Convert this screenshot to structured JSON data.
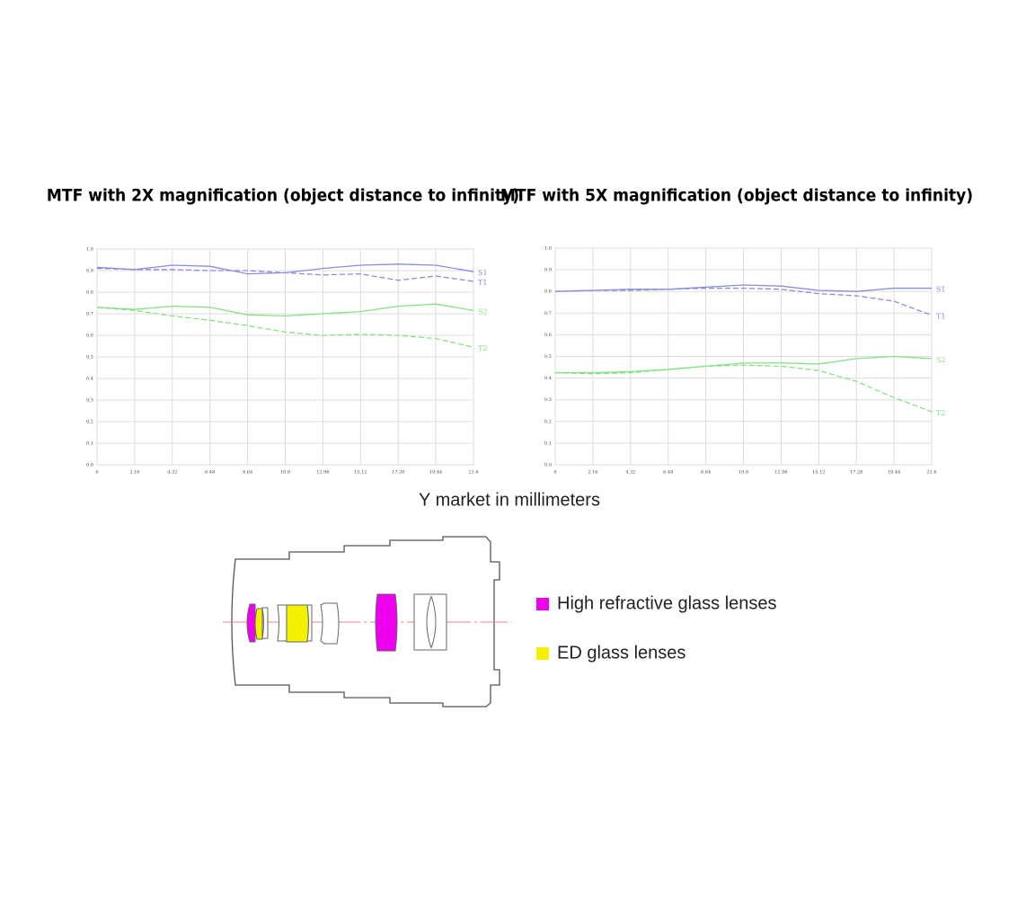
{
  "chart_data": [
    {
      "type": "line",
      "title": "MTF with 2X magnification (object distance to infinity)",
      "x": [
        0,
        2.16,
        4.32,
        6.48,
        8.64,
        10.8,
        12.96,
        15.12,
        17.28,
        19.44,
        21.6
      ],
      "xlim": [
        0,
        21.6
      ],
      "xticks": [
        0,
        2.16,
        4.32,
        6.48,
        8.64,
        10.8,
        12.96,
        15.12,
        17.28,
        19.44,
        21.6
      ],
      "ylim": [
        0,
        1
      ],
      "yticks": [
        {
          "value": 0,
          "label": "0.0"
        },
        0.1,
        0.2,
        0.3,
        0.4,
        0.5,
        0.6,
        0.7,
        0.8,
        0.9,
        {
          "value": 1,
          "label": "1.0"
        }
      ],
      "grid": true,
      "series": [
        {
          "name": "S1",
          "color": "#8c8cdc",
          "dashed": false,
          "values": [
            0.915,
            0.905,
            0.925,
            0.92,
            0.885,
            0.89,
            0.91,
            0.925,
            0.93,
            0.925,
            0.895
          ]
        },
        {
          "name": "T1",
          "color": "#8c8cdc",
          "dashed": true,
          "values": [
            0.91,
            0.905,
            0.905,
            0.9,
            0.9,
            0.89,
            0.88,
            0.885,
            0.855,
            0.875,
            0.85
          ]
        },
        {
          "name": "S2",
          "color": "#84e284",
          "dashed": false,
          "values": [
            0.73,
            0.72,
            0.735,
            0.73,
            0.695,
            0.69,
            0.7,
            0.71,
            0.735,
            0.745,
            0.715
          ]
        },
        {
          "name": "T2",
          "color": "#84e284",
          "dashed": true,
          "values": [
            0.73,
            0.715,
            0.69,
            0.67,
            0.645,
            0.615,
            0.6,
            0.605,
            0.6,
            0.585,
            0.545
          ]
        }
      ]
    },
    {
      "type": "line",
      "title": "MTF with 5X magnification (object distance to infinity)",
      "x": [
        0,
        2.16,
        4.32,
        6.48,
        8.64,
        10.8,
        12.96,
        15.12,
        17.28,
        19.44,
        21.6
      ],
      "xlim": [
        0,
        21.6
      ],
      "xticks": [
        0,
        2.16,
        4.32,
        6.48,
        8.64,
        10.8,
        12.96,
        15.12,
        17.28,
        19.44,
        21.6
      ],
      "ylim": [
        0,
        1
      ],
      "yticks": [
        {
          "value": 0,
          "label": "0.0"
        },
        0.1,
        0.2,
        0.3,
        0.4,
        0.5,
        0.6,
        0.7,
        0.8,
        0.9,
        {
          "value": 1,
          "label": "1.0"
        }
      ],
      "grid": true,
      "series": [
        {
          "name": "S1",
          "color": "#8c8cdc",
          "dashed": false,
          "values": [
            0.8,
            0.805,
            0.81,
            0.81,
            0.82,
            0.83,
            0.825,
            0.805,
            0.8,
            0.815,
            0.815
          ]
        },
        {
          "name": "T1",
          "color": "#8c8cdc",
          "dashed": true,
          "values": [
            0.8,
            0.805,
            0.805,
            0.81,
            0.815,
            0.815,
            0.81,
            0.79,
            0.78,
            0.755,
            0.69
          ]
        },
        {
          "name": "S2",
          "color": "#84e284",
          "dashed": false,
          "values": [
            0.425,
            0.425,
            0.43,
            0.44,
            0.455,
            0.47,
            0.47,
            0.465,
            0.49,
            0.5,
            0.49
          ]
        },
        {
          "name": "T2",
          "color": "#84e284",
          "dashed": true,
          "values": [
            0.425,
            0.42,
            0.425,
            0.44,
            0.455,
            0.46,
            0.455,
            0.435,
            0.385,
            0.31,
            0.245
          ]
        }
      ]
    }
  ],
  "shared_xlabel": "Y market in millimeters",
  "lens_legend": [
    {
      "label": "High refractive glass lenses",
      "color": "#ee00ee"
    },
    {
      "label": "ED glass lenses",
      "color": "#f5f000"
    }
  ]
}
